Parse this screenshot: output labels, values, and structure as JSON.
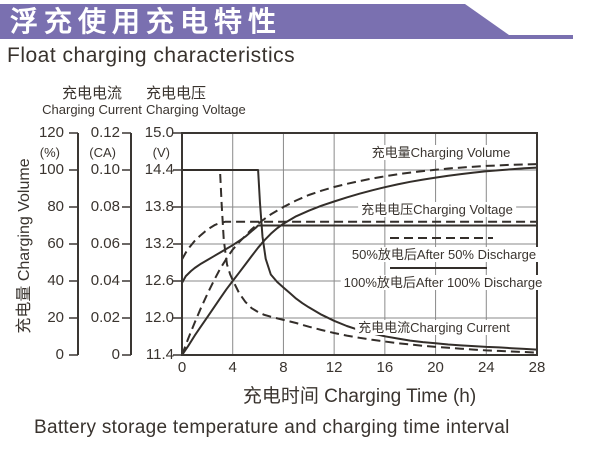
{
  "header": {
    "title_zh": "浮充使用充电特性",
    "title_en": "Float charging characteristics"
  },
  "caption": "Battery storage temperature and charging time interval",
  "colors": {
    "banner": "#7a70b0",
    "ink": "#332e2a",
    "grid": "#8a8a8a",
    "text": "#3a342f"
  },
  "chart_data": {
    "type": "line",
    "grid": "on",
    "legend_position": "inside-right",
    "x_axis": {
      "title": "充电时间 Charging Time (h)",
      "ticks": [
        "0",
        "4",
        "8",
        "12",
        "16",
        "20",
        "24",
        "28"
      ],
      "range": [
        0,
        28
      ]
    },
    "y_axes": {
      "volume": {
        "title_zh": "充电量",
        "title_en": "Charging Volume",
        "unit": "(%)",
        "ticks": [
          "120",
          "100",
          "80",
          "60",
          "40",
          "20",
          "0"
        ],
        "range": [
          0,
          120
        ]
      },
      "current": {
        "title_zh": "充电电流",
        "title_en": "Charging Current",
        "unit": "(CA)",
        "ticks": [
          "0.12",
          "0.10",
          "0.08",
          "0.06",
          "0.04",
          "0.02",
          "0"
        ],
        "range": [
          0,
          0.12
        ]
      },
      "voltage": {
        "title_zh": "充电电压",
        "title_en": "Charging Voltage",
        "unit": "(V)",
        "ticks": [
          "15.0",
          "14.4",
          "13.8",
          "13.2",
          "12.6",
          "12.0",
          "11.4"
        ],
        "range": [
          11.4,
          15.0
        ]
      }
    },
    "legend": [
      {
        "label": "50%放电后After 50% Discharge",
        "style": "dashed"
      },
      {
        "label": "100%放电后After 100% Discharge",
        "style": "solid"
      }
    ],
    "inner_labels": [
      {
        "id": "volume",
        "text": "充电量Charging Volume"
      },
      {
        "id": "voltage",
        "text": "充电电压Charging Voltage"
      },
      {
        "id": "current",
        "text": "充电电流Charging Current"
      }
    ],
    "series": [
      {
        "name": "charging-volume-after-100-discharge",
        "axis": "volume",
        "style": "solid",
        "points": [
          [
            0,
            0
          ],
          [
            0.5,
            5
          ],
          [
            1,
            10.5
          ],
          [
            1.5,
            15.5
          ],
          [
            2,
            20.5
          ],
          [
            2.5,
            25.5
          ],
          [
            3,
            30.5
          ],
          [
            3.5,
            35.5
          ],
          [
            4,
            40
          ],
          [
            4.5,
            44.5
          ],
          [
            5,
            49
          ],
          [
            5.5,
            53.5
          ],
          [
            6,
            58
          ],
          [
            6.5,
            62
          ],
          [
            7,
            65.5
          ],
          [
            7.5,
            68.5
          ],
          [
            8,
            71
          ],
          [
            9,
            75
          ],
          [
            10,
            78
          ],
          [
            11,
            80.7
          ],
          [
            12,
            83
          ],
          [
            13,
            85.2
          ],
          [
            14,
            87.2
          ],
          [
            15,
            89
          ],
          [
            16,
            90.7
          ],
          [
            17,
            92.2
          ],
          [
            18,
            93.6
          ],
          [
            19,
            94.8
          ],
          [
            20,
            95.9
          ],
          [
            21,
            96.9
          ],
          [
            22,
            97.8
          ],
          [
            23,
            98.6
          ],
          [
            24,
            99.3
          ],
          [
            25,
            99.9
          ],
          [
            26,
            100.4
          ],
          [
            27,
            100.9
          ],
          [
            28,
            101.3
          ]
        ]
      },
      {
        "name": "charging-volume-after-50-discharge",
        "axis": "volume",
        "style": "dashed",
        "points": [
          [
            0,
            0
          ],
          [
            0.5,
            9
          ],
          [
            1,
            17.5
          ],
          [
            1.5,
            25.5
          ],
          [
            2,
            33
          ],
          [
            2.5,
            40
          ],
          [
            3,
            46.5
          ],
          [
            3.5,
            52
          ],
          [
            4,
            57
          ],
          [
            4.5,
            61
          ],
          [
            5,
            64.5
          ],
          [
            5.5,
            68
          ],
          [
            6,
            71
          ],
          [
            6.5,
            73.5
          ],
          [
            7,
            76
          ],
          [
            8,
            80
          ],
          [
            9,
            83.5
          ],
          [
            10,
            86.5
          ],
          [
            11,
            88.8
          ],
          [
            12,
            90.8
          ],
          [
            13,
            92.5
          ],
          [
            14,
            94
          ],
          [
            15,
            95.4
          ],
          [
            16,
            96.6
          ],
          [
            17,
            97.7
          ],
          [
            18,
            98.6
          ],
          [
            19,
            99.4
          ],
          [
            20,
            100.1
          ],
          [
            21,
            100.8
          ],
          [
            22,
            101.3
          ],
          [
            23,
            101.8
          ],
          [
            24,
            102.2
          ],
          [
            25,
            102.5
          ],
          [
            26,
            102.8
          ],
          [
            27,
            103
          ],
          [
            28,
            103.2
          ]
        ]
      },
      {
        "name": "charging-voltage-after-100-discharge",
        "axis": "voltage",
        "style": "solid",
        "points": [
          [
            0,
            12.57
          ],
          [
            0.3,
            12.68
          ],
          [
            0.7,
            12.76
          ],
          [
            1,
            12.81
          ],
          [
            1.5,
            12.88
          ],
          [
            2,
            12.94
          ],
          [
            2.5,
            13.0
          ],
          [
            3,
            13.06
          ],
          [
            3.5,
            13.12
          ],
          [
            4,
            13.18
          ],
          [
            4.5,
            13.25
          ],
          [
            5,
            13.32
          ],
          [
            5.5,
            13.41
          ],
          [
            5.8,
            13.46
          ],
          [
            6,
            13.5
          ],
          [
            28,
            13.5
          ]
        ]
      },
      {
        "name": "charging-voltage-after-50-discharge",
        "axis": "voltage",
        "style": "dashed",
        "points": [
          [
            0,
            12.95
          ],
          [
            0.3,
            13.06
          ],
          [
            0.6,
            13.15
          ],
          [
            1,
            13.25
          ],
          [
            1.4,
            13.33
          ],
          [
            1.8,
            13.4
          ],
          [
            2.2,
            13.46
          ],
          [
            2.6,
            13.51
          ],
          [
            3,
            13.54
          ],
          [
            3.4,
            13.56
          ],
          [
            28,
            13.56
          ]
        ]
      },
      {
        "name": "charging-current-after-100-discharge",
        "axis": "current",
        "style": "solid",
        "points": [
          [
            0,
            0.1
          ],
          [
            6,
            0.1
          ],
          [
            6.15,
            0.082
          ],
          [
            6.35,
            0.064
          ],
          [
            6.6,
            0.052
          ],
          [
            7,
            0.0435
          ],
          [
            7.5,
            0.0395
          ],
          [
            8,
            0.0365
          ],
          [
            8.5,
            0.0335
          ],
          [
            9,
            0.0305
          ],
          [
            9.5,
            0.028
          ],
          [
            10,
            0.0258
          ],
          [
            11,
            0.0218
          ],
          [
            12,
            0.0185
          ],
          [
            13,
            0.0157
          ],
          [
            14,
            0.0134
          ],
          [
            15,
            0.0116
          ],
          [
            16,
            0.0101
          ],
          [
            17,
            0.0089
          ],
          [
            18,
            0.0078
          ],
          [
            19,
            0.007
          ],
          [
            20,
            0.0063
          ],
          [
            21,
            0.0057
          ],
          [
            22,
            0.0052
          ],
          [
            23,
            0.0048
          ],
          [
            24,
            0.0044
          ],
          [
            25,
            0.0041
          ],
          [
            26,
            0.0037
          ],
          [
            27,
            0.0033
          ],
          [
            28,
            0.0029
          ]
        ]
      },
      {
        "name": "charging-current-after-50-discharge",
        "axis": "current",
        "style": "dashed",
        "points": [
          [
            0,
            0.1
          ],
          [
            3,
            0.1
          ],
          [
            3.12,
            0.082
          ],
          [
            3.3,
            0.062
          ],
          [
            3.55,
            0.049
          ],
          [
            3.8,
            0.0435
          ],
          [
            4,
            0.0405
          ],
          [
            4.5,
            0.0335
          ],
          [
            5,
            0.0287
          ],
          [
            5.5,
            0.0253
          ],
          [
            6,
            0.0232
          ],
          [
            6.5,
            0.0217
          ],
          [
            7,
            0.0207
          ],
          [
            8,
            0.019
          ],
          [
            9,
            0.0173
          ],
          [
            10,
            0.0153
          ],
          [
            11,
            0.0135
          ],
          [
            12,
            0.0119
          ],
          [
            13,
            0.0105
          ],
          [
            14,
            0.0093
          ],
          [
            15,
            0.0082
          ],
          [
            16,
            0.0073
          ],
          [
            17,
            0.0064
          ],
          [
            18,
            0.0057
          ],
          [
            19,
            0.005
          ],
          [
            20,
            0.0044
          ],
          [
            21,
            0.0039
          ],
          [
            22,
            0.0034
          ],
          [
            23,
            0.0029
          ],
          [
            24,
            0.0025
          ],
          [
            25,
            0.0022
          ],
          [
            26,
            0.0019
          ],
          [
            27,
            0.0016
          ],
          [
            28,
            0.0013
          ]
        ]
      }
    ]
  }
}
